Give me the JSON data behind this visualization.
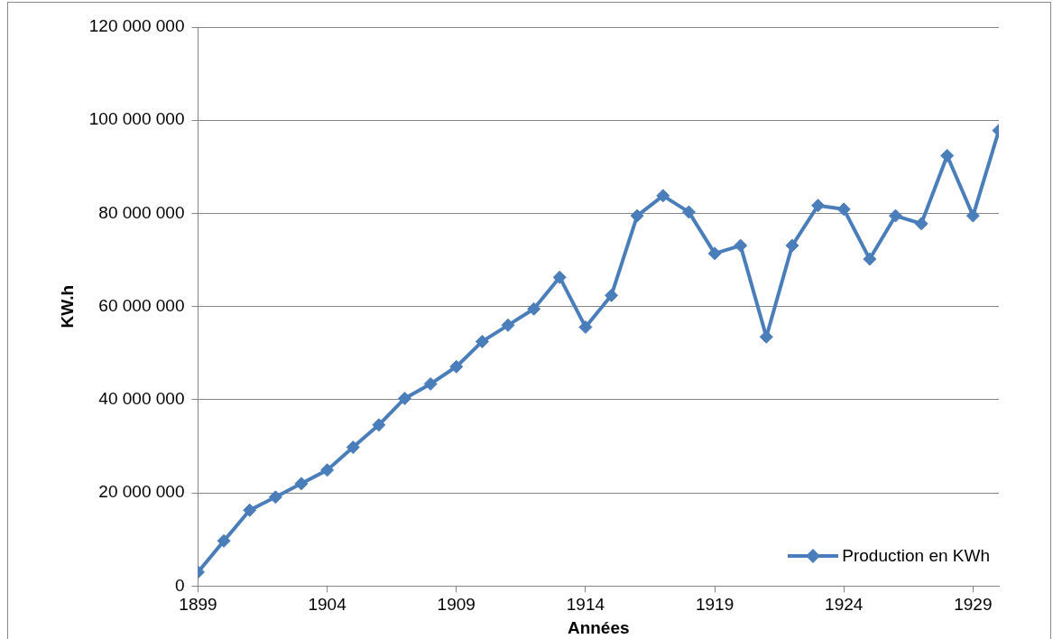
{
  "chart_data": {
    "type": "line",
    "xlabel": "Années",
    "ylabel": "KW.h",
    "x": [
      1899,
      1900,
      1901,
      1902,
      1903,
      1904,
      1905,
      1906,
      1907,
      1908,
      1909,
      1910,
      1911,
      1912,
      1913,
      1914,
      1915,
      1916,
      1917,
      1918,
      1919,
      1920,
      1921,
      1922,
      1923,
      1924,
      1925,
      1926,
      1927,
      1928,
      1929,
      1930
    ],
    "series": [
      {
        "name": "Production en KWh",
        "color": "#4a7ebb",
        "values": [
          3000000,
          9700000,
          16300000,
          19100000,
          22000000,
          24900000,
          29800000,
          34600000,
          40300000,
          43400000,
          47100000,
          52500000,
          56000000,
          59500000,
          66300000,
          55600000,
          62400000,
          79500000,
          83800000,
          80300000,
          71400000,
          73100000,
          53500000,
          73100000,
          81700000,
          80900000,
          70200000,
          79500000,
          77800000,
          92400000,
          79500000,
          97800000
        ]
      }
    ],
    "xlim": [
      1899,
      1930
    ],
    "xticks": [
      1899,
      1904,
      1909,
      1914,
      1919,
      1924,
      1929
    ],
    "ylim": [
      0,
      120000000
    ],
    "yticks": [
      {
        "value": 0,
        "label": "0"
      },
      {
        "value": 20000000,
        "label": "20 000 000"
      },
      {
        "value": 40000000,
        "label": "40 000 000"
      },
      {
        "value": 60000000,
        "label": "60 000 000"
      },
      {
        "value": 80000000,
        "label": "80 000 000"
      },
      {
        "value": 100000000,
        "label": "100 000 000"
      },
      {
        "value": 120000000,
        "label": "120 000 000"
      }
    ],
    "grid": "y",
    "legend": "bottom right",
    "marker": "diamond",
    "line_style": "solid"
  }
}
